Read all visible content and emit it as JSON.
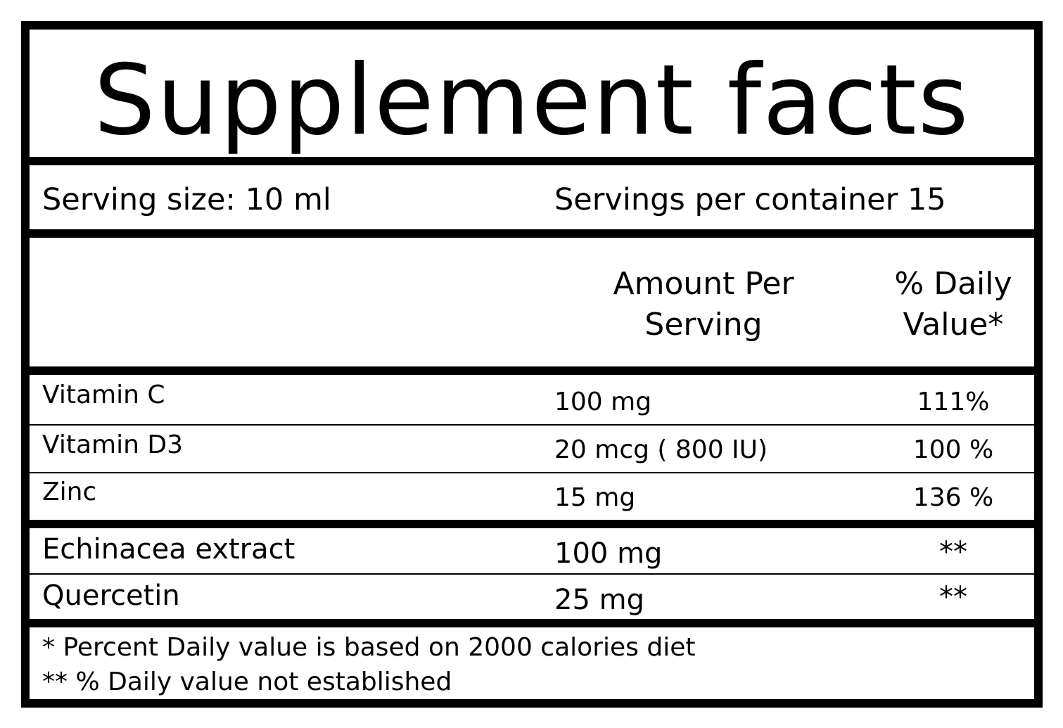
{
  "title": "Supplement facts",
  "serving": {
    "size": "Serving size: 10 ml",
    "per_container": "Servings per container 15"
  },
  "columns": {
    "amount_line1": "Amount Per",
    "amount_line2": "Serving",
    "dv_line1": "% Daily",
    "dv_line2": "Value*"
  },
  "rows": [
    {
      "name": "Vitamin C",
      "amount": "100 mg",
      "dv": "111%"
    },
    {
      "name": "Vitamin D3",
      "amount": "20 mcg ( 800 IU)",
      "dv": "100 %"
    },
    {
      "name": "Zinc",
      "amount": "15  mg",
      "dv": "136 %"
    },
    {
      "name": "Echinacea extract",
      "amount": "100  mg",
      "dv": "**"
    },
    {
      "name": "Quercetin",
      "amount": "25 mg",
      "dv": "**"
    }
  ],
  "footnotes": {
    "line1": "* Percent Daily value is based on 2000 calories diet",
    "line2": "** % Daily value not established"
  }
}
